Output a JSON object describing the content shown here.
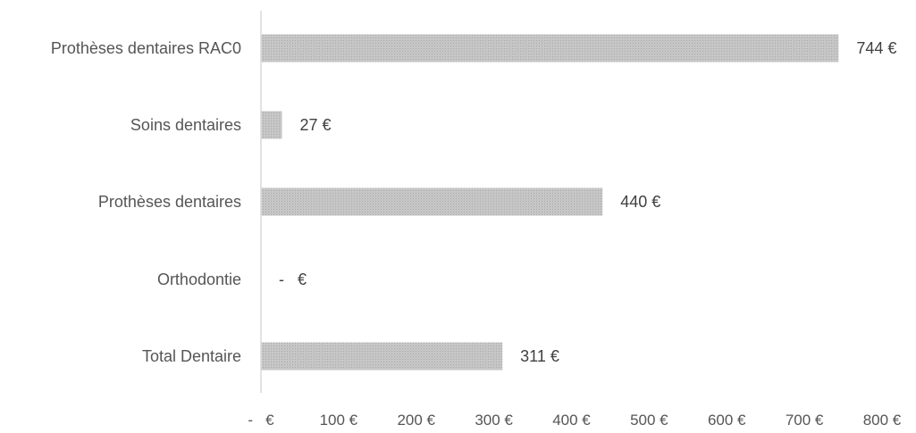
{
  "chart_data": {
    "type": "bar",
    "orientation": "horizontal",
    "categories": [
      "Prothèses dentaires RAC0",
      "Soins dentaires",
      "Prothèses dentaires",
      "Orthodontie",
      "Total Dentaire"
    ],
    "values": [
      744,
      27,
      440,
      0,
      311
    ],
    "data_labels": [
      "744 €",
      "27 €",
      "440 €",
      "-   €",
      "311 €"
    ],
    "xlim": [
      0,
      800
    ],
    "x_ticks": [
      0,
      100,
      200,
      300,
      400,
      500,
      600,
      700,
      800
    ],
    "x_tick_labels": [
      "-   €",
      "100 €",
      "200 €",
      "300 €",
      "400 €",
      "500 €",
      "600 €",
      "700 €",
      "800 €"
    ],
    "bar_color": "#c0c0c0",
    "bar_pattern": "light dotted grey fill",
    "axis_color": "#d9d9d9",
    "grid": false,
    "legend": "none"
  }
}
